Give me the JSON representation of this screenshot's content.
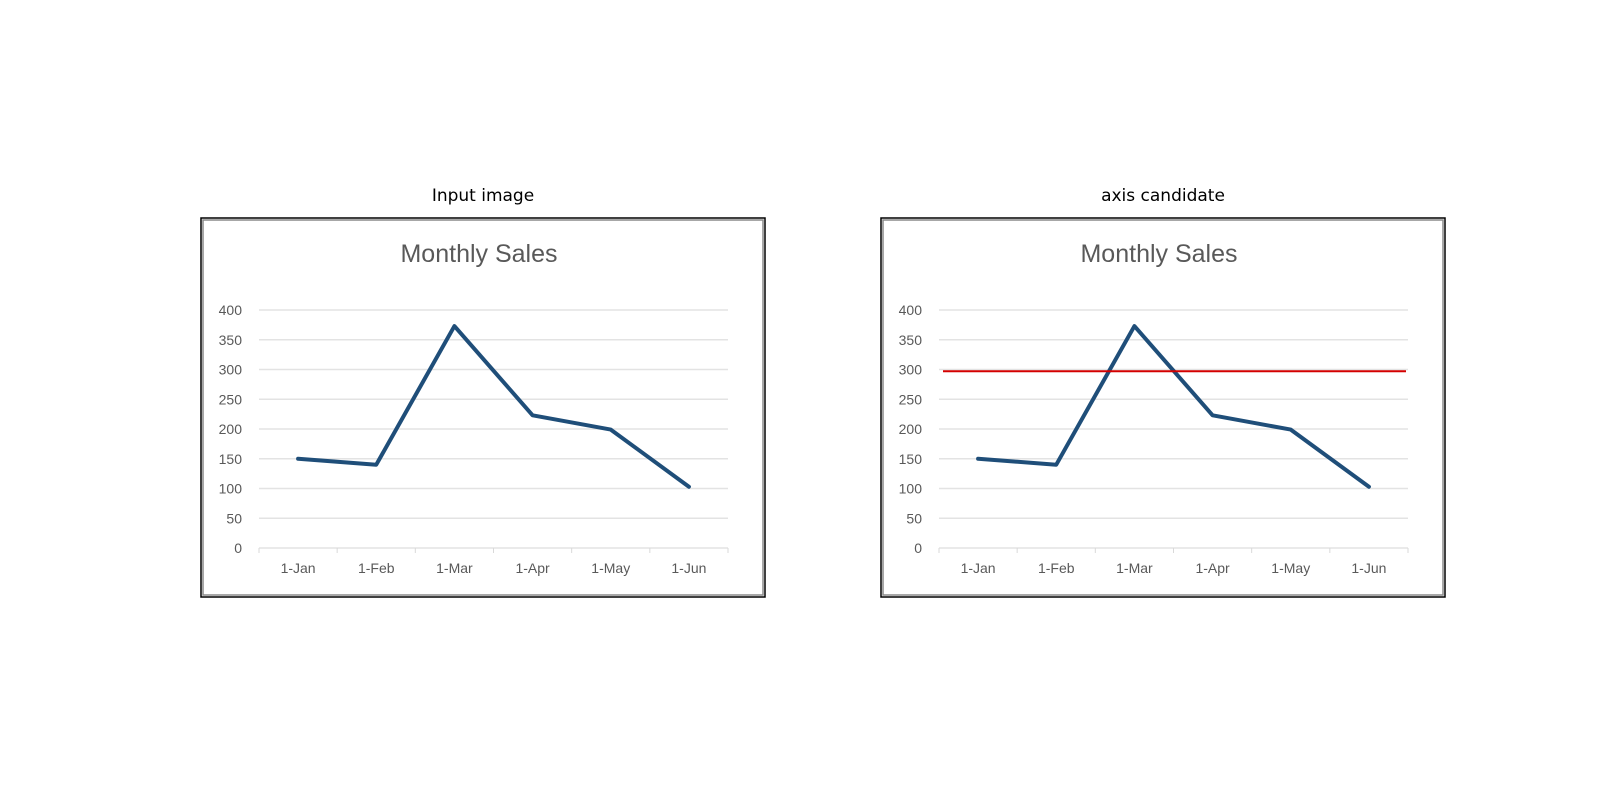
{
  "panels": [
    {
      "title": "Input image",
      "overlay": null
    },
    {
      "title": "axis candidate",
      "overlay": {
        "type": "horizontal-line",
        "y_value": 297,
        "color": "#d40000"
      }
    }
  ],
  "chart_data": [
    {
      "type": "line",
      "title": "Monthly Sales",
      "categories": [
        "1-Jan",
        "1-Feb",
        "1-Mar",
        "1-Apr",
        "1-May",
        "1-Jun"
      ],
      "series": [
        {
          "values": [
            150,
            140,
            373,
            223,
            199,
            103
          ],
          "color": "#1f4e79"
        }
      ],
      "ylim": [
        0,
        400
      ],
      "yticks": [
        0,
        50,
        100,
        150,
        200,
        250,
        300,
        350,
        400
      ],
      "grid": true,
      "legend": "none"
    },
    {
      "type": "line",
      "title": "Monthly Sales",
      "categories": [
        "1-Jan",
        "1-Feb",
        "1-Mar",
        "1-Apr",
        "1-May",
        "1-Jun"
      ],
      "series": [
        {
          "values": [
            150,
            140,
            373,
            223,
            199,
            103
          ],
          "color": "#1f4e79"
        }
      ],
      "ylim": [
        0,
        400
      ],
      "yticks": [
        0,
        50,
        100,
        150,
        200,
        250,
        300,
        350,
        400
      ],
      "grid": true,
      "legend": "none"
    }
  ]
}
